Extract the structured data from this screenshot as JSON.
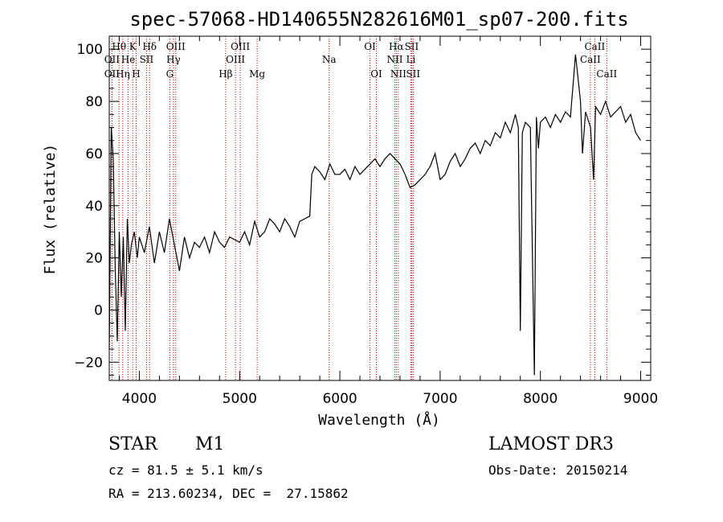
{
  "chart_data": {
    "type": "line",
    "title": "spec-57068-HD140655N282616M01_sp07-200.fits",
    "xlabel": "Wavelength (Å)",
    "ylabel": "Flux (relative)",
    "xlim": [
      3700,
      9100
    ],
    "ylim": [
      -27,
      105
    ],
    "xticks": [
      4000,
      5000,
      6000,
      7000,
      8000,
      9000
    ],
    "yticks": [
      -20,
      0,
      20,
      40,
      60,
      80,
      100
    ],
    "grid": false,
    "series": [
      {
        "x": [
          3700,
          3720,
          3740,
          3760,
          3780,
          3800,
          3820,
          3840,
          3860,
          3880,
          3900,
          3920,
          3950,
          3980,
          4000,
          4050,
          4100,
          4150,
          4200,
          4250,
          4300,
          4350,
          4400,
          4450,
          4500,
          4550,
          4600,
          4650,
          4700,
          4750,
          4800,
          4850,
          4900,
          4950,
          5000,
          5050,
          5100,
          5150,
          5200,
          5250,
          5300,
          5350,
          5400,
          5450,
          5500,
          5550,
          5600,
          5650,
          5700,
          5720,
          5750,
          5800,
          5850,
          5900,
          5950,
          6000,
          6050,
          6100,
          6150,
          6200,
          6250,
          6300,
          6350,
          6400,
          6450,
          6500,
          6550,
          6600,
          6650,
          6700,
          6750,
          6800,
          6850,
          6900,
          6950,
          7000,
          7050,
          7100,
          7150,
          7200,
          7250,
          7300,
          7350,
          7400,
          7450,
          7500,
          7550,
          7600,
          7650,
          7700,
          7750,
          7780,
          7800,
          7820,
          7850,
          7900,
          7940,
          7960,
          7980,
          8000,
          8050,
          8100,
          8150,
          8200,
          8250,
          8300,
          8350,
          8400,
          8420,
          8450,
          8500,
          8530,
          8550,
          8600,
          8650,
          8700,
          8750,
          8800,
          8850,
          8900,
          8950,
          9000
        ],
        "y": [
          -15,
          70,
          58,
          15,
          -12,
          30,
          5,
          28,
          -8,
          35,
          18,
          25,
          30,
          20,
          28,
          22,
          32,
          18,
          30,
          22,
          35,
          25,
          15,
          28,
          20,
          26,
          24,
          28,
          22,
          30,
          26,
          24,
          28,
          27,
          26,
          30,
          25,
          34,
          28,
          30,
          35,
          33,
          30,
          35,
          32,
          28,
          34,
          35,
          36,
          52,
          55,
          53,
          50,
          56,
          52,
          52,
          54,
          50,
          55,
          52,
          54,
          56,
          58,
          55,
          58,
          60,
          58,
          56,
          52,
          47,
          48,
          50,
          52,
          55,
          60,
          50,
          52,
          57,
          60,
          55,
          58,
          62,
          64,
          60,
          65,
          63,
          68,
          66,
          72,
          68,
          75,
          70,
          -8,
          68,
          72,
          70,
          -25,
          74,
          62,
          72,
          74,
          70,
          75,
          72,
          76,
          74,
          98,
          80,
          60,
          76,
          70,
          50,
          78,
          75,
          80,
          74,
          76,
          78,
          72,
          75,
          68,
          65
        ]
      }
    ],
    "line_markers": [
      {
        "name": "Hθ",
        "x": 3798,
        "row": 1
      },
      {
        "name": "OII",
        "x": 3727,
        "row": 2
      },
      {
        "name": "OII",
        "x": 3727,
        "row": 3
      },
      {
        "name": "K",
        "x": 3934,
        "row": 1
      },
      {
        "name": "He",
        "x": 3889,
        "row": 2
      },
      {
        "name": "Hη",
        "x": 3835,
        "row": 3
      },
      {
        "name": "SII",
        "x": 4072,
        "row": 2
      },
      {
        "name": "H",
        "x": 3968,
        "row": 3
      },
      {
        "name": "Hδ",
        "x": 4102,
        "row": 1
      },
      {
        "name": "OIII",
        "x": 4363,
        "row": 1
      },
      {
        "name": "Hγ",
        "x": 4340,
        "row": 2
      },
      {
        "name": "G",
        "x": 4304,
        "row": 3
      },
      {
        "name": "OIII",
        "x": 5007,
        "row": 1
      },
      {
        "name": "OIII",
        "x": 4959,
        "row": 2
      },
      {
        "name": "Hβ",
        "x": 4861,
        "row": 3
      },
      {
        "name": "Mg",
        "x": 5175,
        "row": 3
      },
      {
        "name": "Na",
        "x": 5893,
        "row": 2
      },
      {
        "name": "OI",
        "x": 6300,
        "row": 1
      },
      {
        "name": "OI",
        "x": 6364,
        "row": 3
      },
      {
        "name": "Hα",
        "x": 6563,
        "row": 1
      },
      {
        "name": "SII",
        "x": 6716,
        "row": 1
      },
      {
        "name": "NII",
        "x": 6548,
        "row": 2
      },
      {
        "name": "Li",
        "x": 6708,
        "row": 2
      },
      {
        "name": "NII",
        "x": 6583,
        "row": 3
      },
      {
        "name": "SII",
        "x": 6731,
        "row": 3
      },
      {
        "name": "CaII",
        "x": 8542,
        "row": 1
      },
      {
        "name": "CaII",
        "x": 8498,
        "row": 2
      },
      {
        "name": "CaII",
        "x": 8662,
        "row": 3
      }
    ]
  },
  "info": {
    "object_class": "STAR",
    "subclass": "M1",
    "survey": "LAMOST DR3",
    "cz": "cz = 81.5 ± 5.1 km/s",
    "obs_date": "Obs-Date: 20150214",
    "coords": "RA = 213.60234, DEC =  27.15862"
  },
  "colors": {
    "axis": "#000000",
    "spectrum": "#000000",
    "marker": "#cc0000"
  }
}
